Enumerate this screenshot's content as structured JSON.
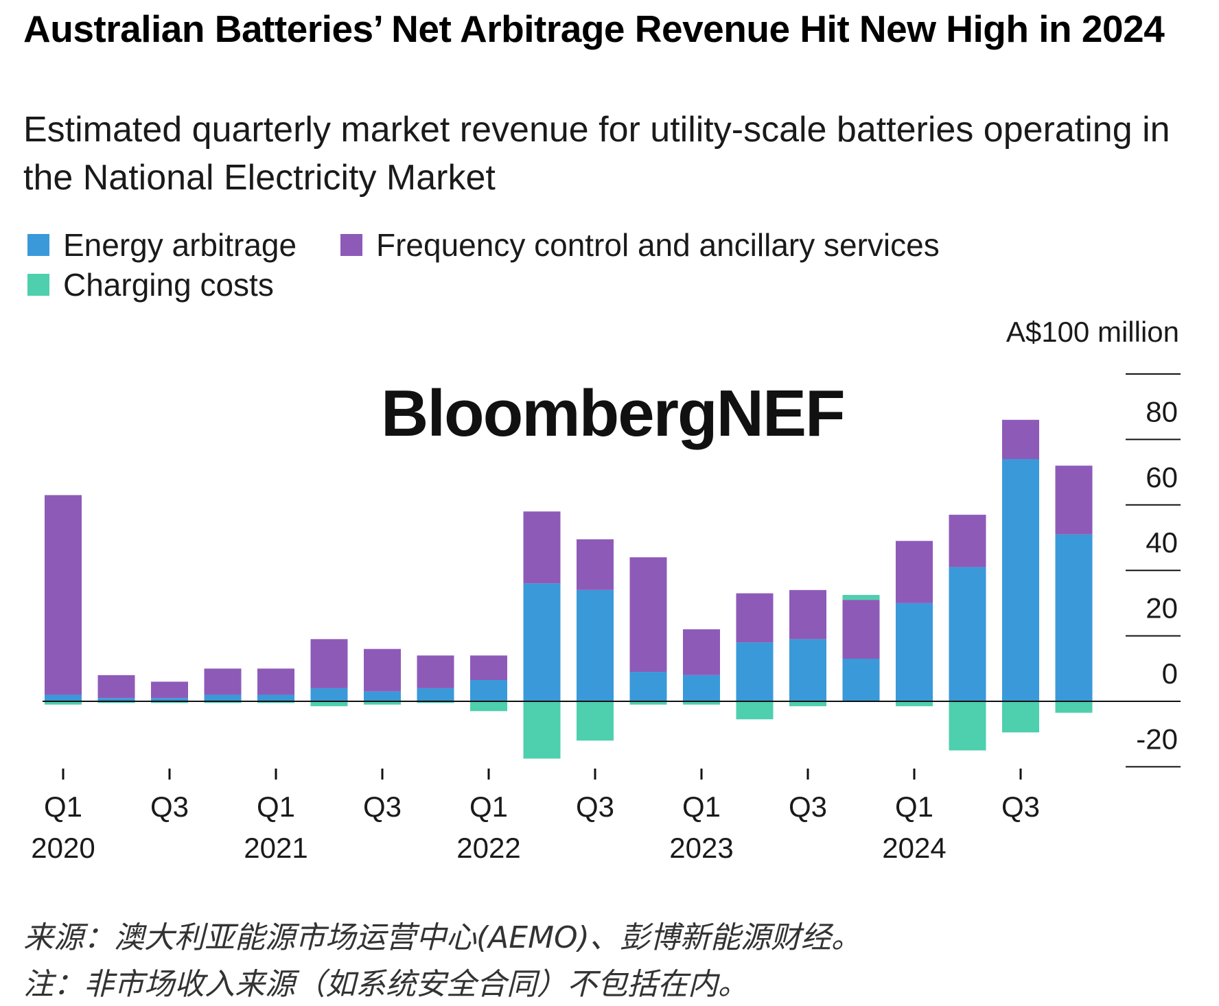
{
  "title": "Australian Batteries’ Net Arbitrage Revenue Hit New High in 2024",
  "subtitle": "Estimated quarterly market revenue for utility-scale batteries operating in the National Electricity Market",
  "legend": [
    {
      "label": "Energy arbitrage",
      "color": "#3a99d9"
    },
    {
      "label": "Frequency control and ancillary services",
      "color": "#8e5ab8"
    },
    {
      "label": "Charging costs",
      "color": "#4ecfad"
    }
  ],
  "watermark": "BloombergNEF",
  "footnote": {
    "source": "来源：澳大利亚能源市场运营中心(AEMO)、彭博新能源财经。",
    "note": "注：非市场收入来源（如系统安全合同）不包括在内。"
  },
  "chart_data": {
    "type": "bar",
    "stacked": true,
    "title": "Australian Batteries’ Net Arbitrage Revenue Hit New High in 2024",
    "ylabel": "A$100 million",
    "ylim": [
      -20,
      100
    ],
    "yticks": [
      -20,
      0,
      20,
      40,
      60,
      80,
      100
    ],
    "ytick_labels": [
      "-20",
      "0",
      "20",
      "40",
      "60",
      "80",
      ""
    ],
    "categories": [
      "Q1 2020",
      "Q2 2020",
      "Q3 2020",
      "Q4 2020",
      "Q1 2021",
      "Q2 2021",
      "Q3 2021",
      "Q4 2021",
      "Q1 2022",
      "Q2 2022",
      "Q3 2022",
      "Q4 2022",
      "Q1 2023",
      "Q2 2023",
      "Q3 2023",
      "Q4 2023",
      "Q1 2024",
      "Q2 2024",
      "Q3 2024",
      "Q4 2024"
    ],
    "x_tick_labels": [
      {
        "index": 0,
        "quarter": "Q1",
        "year": "2020"
      },
      {
        "index": 2,
        "quarter": "Q3",
        "year": ""
      },
      {
        "index": 4,
        "quarter": "Q1",
        "year": "2021"
      },
      {
        "index": 6,
        "quarter": "Q3",
        "year": ""
      },
      {
        "index": 8,
        "quarter": "Q1",
        "year": "2022"
      },
      {
        "index": 10,
        "quarter": "Q3",
        "year": ""
      },
      {
        "index": 12,
        "quarter": "Q1",
        "year": "2023"
      },
      {
        "index": 14,
        "quarter": "Q3",
        "year": ""
      },
      {
        "index": 16,
        "quarter": "Q1",
        "year": "2024"
      },
      {
        "index": 18,
        "quarter": "Q3",
        "year": ""
      }
    ],
    "series": [
      {
        "name": "Energy arbitrage",
        "color": "#3a99d9",
        "values": [
          2,
          1,
          1,
          2,
          2,
          4,
          3,
          4,
          6.5,
          36,
          34,
          9,
          8,
          18,
          19,
          13,
          30,
          41,
          74,
          51
        ]
      },
      {
        "name": "Frequency control and ancillary services",
        "color": "#8e5ab8",
        "values": [
          61,
          7,
          5,
          8,
          8,
          15,
          13,
          10,
          7.5,
          22,
          15.5,
          35,
          14,
          15,
          15,
          18,
          19,
          16,
          12,
          21
        ]
      },
      {
        "name": "Charging costs",
        "color": "#4ecfad",
        "values": [
          -1,
          -0.5,
          -0.5,
          -0.5,
          -0.5,
          -1.5,
          -1,
          -0.5,
          -3,
          -17.5,
          -12,
          -1,
          -1,
          -5.5,
          -1.5,
          1.5,
          -1.5,
          -15,
          -9.5,
          -3.5
        ]
      }
    ]
  }
}
